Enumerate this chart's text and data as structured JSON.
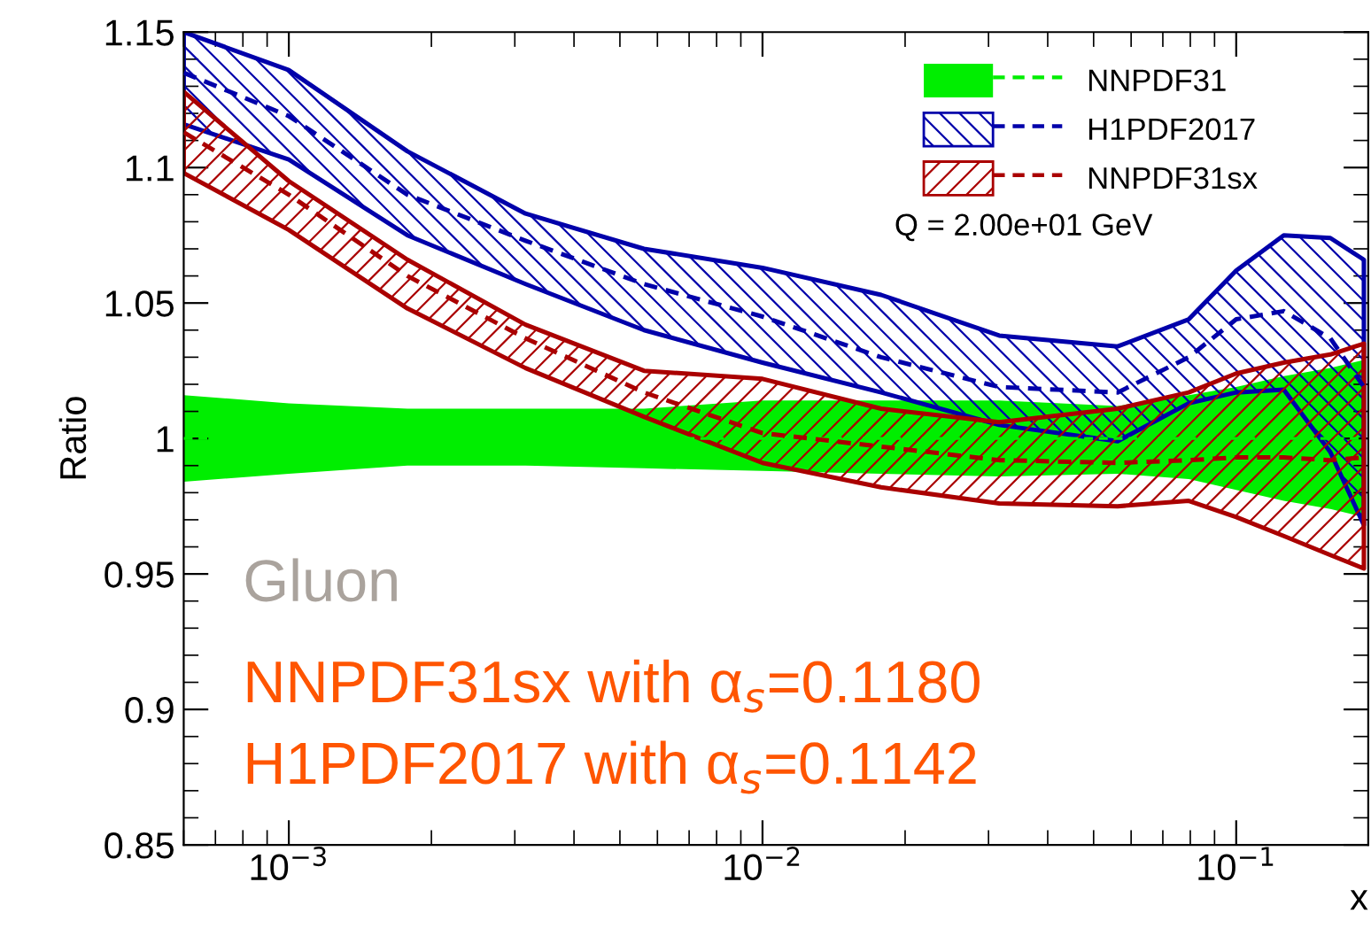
{
  "chart_data": {
    "type": "line",
    "xlabel": "x",
    "ylabel": "Ratio",
    "x": [
      0.0006,
      0.001,
      0.00178,
      0.00316,
      0.00562,
      0.01,
      0.0178,
      0.0316,
      0.0562,
      0.0794,
      0.1,
      0.126,
      0.158,
      0.186
    ],
    "series": [
      {
        "name": "NNPDF31",
        "color": "#00ee00",
        "values": [
          1.0,
          1.0,
          1.0,
          1.0,
          1.0,
          1.0,
          1.0,
          1.0,
          1.0,
          1.0,
          1.0,
          1.0,
          1.0,
          1.0
        ],
        "lower": [
          0.984,
          0.987,
          0.99,
          0.99,
          0.989,
          0.988,
          0.987,
          0.986,
          0.987,
          0.985,
          0.981,
          0.977,
          0.974,
          0.971
        ],
        "upper": [
          1.016,
          1.013,
          1.011,
          1.011,
          1.011,
          1.014,
          1.014,
          1.014,
          1.012,
          1.016,
          1.019,
          1.023,
          1.026,
          1.029
        ]
      },
      {
        "name": "H1PDF2017",
        "color": "#0000aa",
        "values": [
          1.135,
          1.119,
          1.09,
          1.073,
          1.057,
          1.045,
          1.03,
          1.019,
          1.017,
          1.03,
          1.044,
          1.047,
          1.037,
          1.019
        ],
        "lower": [
          1.116,
          1.103,
          1.075,
          1.057,
          1.04,
          1.028,
          1.017,
          1.005,
          0.999,
          1.013,
          1.017,
          1.018,
          0.995,
          0.968
        ],
        "upper": [
          1.15,
          1.136,
          1.106,
          1.083,
          1.07,
          1.063,
          1.053,
          1.038,
          1.034,
          1.044,
          1.062,
          1.075,
          1.074,
          1.066
        ]
      },
      {
        "name": "NNPDF31sx",
        "color": "#aa0000",
        "values": [
          1.113,
          1.09,
          1.06,
          1.037,
          1.017,
          1.002,
          0.997,
          0.992,
          0.991,
          0.992,
          0.993,
          0.993,
          0.992,
          0.993
        ],
        "lower": [
          1.098,
          1.077,
          1.048,
          1.026,
          1.008,
          0.991,
          0.982,
          0.976,
          0.975,
          0.977,
          0.971,
          0.964,
          0.957,
          0.952
        ],
        "upper": [
          1.128,
          1.095,
          1.066,
          1.042,
          1.025,
          1.022,
          1.011,
          1.006,
          1.011,
          1.017,
          1.024,
          1.028,
          1.031,
          1.035
        ]
      }
    ],
    "line_style": "dashed",
    "log": "x",
    "xlim": [
      0.0006,
      0.19
    ],
    "ylim": [
      0.85,
      1.15
    ],
    "xticks": [
      {
        "value": 0.001,
        "label": "10$^{−3}$"
      },
      {
        "value": 0.01,
        "label": "10$^{−2}$"
      },
      {
        "value": 0.1,
        "label": "10$^{−1}$"
      }
    ],
    "yticks": [
      {
        "value": 0.85,
        "label": "0.85"
      },
      {
        "value": 0.9,
        "label": "0.9"
      },
      {
        "value": 0.95,
        "label": "0.95"
      },
      {
        "value": 1.0,
        "label": "1"
      },
      {
        "value": 1.05,
        "label": "1.05"
      },
      {
        "value": 1.1,
        "label": "1.1"
      },
      {
        "value": 1.15,
        "label": "1.15"
      }
    ],
    "grid": false,
    "legend": "top right",
    "annotations": [
      "Q = 2.00e+01 GeV",
      "Gluon",
      "NNPDF31sx with α$_{s}$=0.1180",
      "H1PDF2017 with α$_{s}$=0.1142"
    ]
  }
}
